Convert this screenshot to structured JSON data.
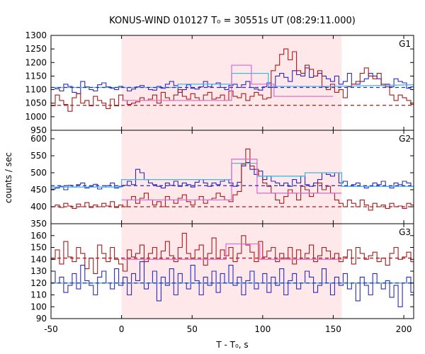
{
  "chart_data": {
    "type": "line",
    "title": "KONUS-WIND 010127 T₀ = 30551s UT (08:29:11.000)",
    "xlabel": "T - T₀, s",
    "ylabel": "counts / sec",
    "xlim": [
      -50,
      207
    ],
    "xticks": [
      -50,
      0,
      50,
      100,
      150,
      200
    ],
    "highlight_interval": [
      0,
      156
    ],
    "bin_width": 3,
    "panels": [
      {
        "name": "G1",
        "ylim": [
          950,
          1300
        ],
        "yticks": [
          950,
          1000,
          1050,
          1100,
          1150,
          1200,
          1250,
          1300
        ],
        "series": [
          {
            "color": "#2b2bbb",
            "x0": -50,
            "values": [
              1108,
              1103,
              1095,
              1120,
              1112,
              1090,
              1085,
              1130,
              1110,
              1100,
              1095,
              1118,
              1125,
              1110,
              1105,
              1100,
              1112,
              1108,
              1095,
              1102,
              1110,
              1115,
              1108,
              1100,
              1098,
              1112,
              1105,
              1120,
              1130,
              1115,
              1090,
              1100,
              1118,
              1105,
              1102,
              1110,
              1130,
              1110,
              1120,
              1125,
              1108,
              1100,
              1115,
              1120,
              1108,
              1118,
              1130,
              1108,
              1102,
              1098,
              1110,
              1125,
              1108,
              1150,
              1160,
              1145,
              1130,
              1170,
              1155,
              1150,
              1180,
              1145,
              1150,
              1160,
              1150,
              1140,
              1130,
              1150,
              1120,
              1130,
              1160,
              1120,
              1120,
              1130,
              1140,
              1160,
              1150,
              1140,
              1115,
              1120,
              1110,
              1140,
              1130,
              1125,
              1105,
              1110,
              1120,
              1110,
              1130,
              1115
            ]
          },
          {
            "color": "#aa1a1a",
            "x0": -50,
            "values": [
              1040,
              1080,
              1060,
              1045,
              1020,
              1070,
              1085,
              1050,
              1060,
              1040,
              1075,
              1060,
              1050,
              1030,
              1065,
              1040,
              1080,
              1060,
              1045,
              1050,
              1055,
              1070,
              1060,
              1065,
              1080,
              1050,
              1090,
              1070,
              1060,
              1080,
              1100,
              1075,
              1065,
              1085,
              1070,
              1060,
              1080,
              1090,
              1065,
              1070,
              1080,
              1060,
              1095,
              1075,
              1070,
              1085,
              1060,
              1075,
              1090,
              1080,
              1065,
              1070,
              1170,
              1190,
              1230,
              1250,
              1210,
              1240,
              1170,
              1160,
              1190,
              1175,
              1150,
              1170,
              1110,
              1100,
              1120,
              1090,
              1100,
              1070,
              1110,
              1120,
              1130,
              1160,
              1180,
              1150,
              1140,
              1160,
              1120,
              1110,
              1080,
              1060,
              1080,
              1070,
              1060,
              1045,
              1060,
              1070,
              1050,
              1040,
              1020,
              1030,
              1060,
              1040,
              1050,
              1030,
              1045,
              1020,
              1040,
              1060,
              1070,
              1050,
              1040,
              1020,
              1030,
              1060
            ]
          },
          {
            "color": "#44b8e0",
            "kind": "fit",
            "points": [
              [
                -50,
                1108
              ],
              [
                40,
                1108
              ],
              [
                40,
                1120
              ],
              [
                78,
                1120
              ],
              [
                78,
                1160
              ],
              [
                104,
                1160
              ],
              [
                104,
                1112
              ],
              [
                150,
                1112
              ],
              [
                150,
                1112
              ],
              [
                207,
                1118
              ]
            ]
          },
          {
            "color": "#e070d0",
            "kind": "fit",
            "points": [
              [
                0,
                1060
              ],
              [
                78,
                1060
              ],
              [
                78,
                1190
              ],
              [
                92,
                1190
              ],
              [
                92,
                1120
              ],
              [
                108,
                1120
              ],
              [
                108,
                1075
              ],
              [
                150,
                1075
              ]
            ]
          },
          {
            "color": "#aa1a1a",
            "kind": "background",
            "dashed": true,
            "value": 1042
          },
          {
            "color": "#2b2bbb",
            "kind": "background",
            "dashed": true,
            "value": 1108
          }
        ]
      },
      {
        "name": "G2",
        "ylim": [
          350,
          625
        ],
        "yticks": [
          350,
          400,
          450,
          500,
          550,
          600
        ],
        "series": [
          {
            "color": "#2b2bbb",
            "x0": -50,
            "values": [
              452,
              455,
              460,
              450,
              463,
              458,
              465,
              470,
              455,
              460,
              466,
              452,
              458,
              462,
              470,
              455,
              460,
              463,
              475,
              465,
              510,
              500,
              480,
              470,
              465,
              460,
              455,
              470,
              463,
              475,
              460,
              470,
              465,
              458,
              472,
              480,
              470,
              460,
              470,
              465,
              475,
              480,
              470,
              460,
              472,
              520,
              530,
              510,
              495,
              505,
              480,
              490,
              475,
              470,
              462,
              470,
              460,
              480,
              470,
              490,
              465,
              460,
              470,
              480,
              500,
              495,
              490,
              500,
              470,
              475,
              460,
              465,
              470,
              460,
              455,
              460,
              470,
              465,
              475,
              460,
              455,
              470,
              465,
              475,
              470,
              460
            ]
          },
          {
            "color": "#aa1a1a",
            "x0": -50,
            "values": [
              400,
              405,
              398,
              410,
              402,
              395,
              408,
              400,
              412,
              398,
              405,
              400,
              410,
              402,
              415,
              398,
              405,
              400,
              420,
              430,
              410,
              425,
              440,
              420,
              405,
              415,
              400,
              430,
              420,
              410,
              425,
              435,
              415,
              405,
              420,
              430,
              410,
              420,
              425,
              440,
              430,
              420,
              415,
              435,
              445,
              525,
              570,
              520,
              510,
              490,
              470,
              460,
              440,
              420,
              410,
              430,
              450,
              440,
              420,
              460,
              450,
              430,
              440,
              470,
              450,
              460,
              440,
              420,
              410,
              400,
              420,
              410,
              400,
              420,
              405,
              390,
              410,
              400,
              405,
              395,
              410,
              400,
              402,
              395,
              410,
              405
            ]
          },
          {
            "color": "#44b8e0",
            "kind": "fit",
            "points": [
              [
                -50,
                458
              ],
              [
                0,
                458
              ],
              [
                0,
                480
              ],
              [
                78,
                480
              ],
              [
                78,
                528
              ],
              [
                96,
                528
              ],
              [
                96,
                490
              ],
              [
                130,
                490
              ],
              [
                130,
                500
              ],
              [
                156,
                500
              ],
              [
                156,
                460
              ],
              [
                207,
                460
              ]
            ]
          },
          {
            "color": "#e070d0",
            "kind": "fit",
            "points": [
              [
                0,
                420
              ],
              [
                78,
                420
              ],
              [
                78,
                540
              ],
              [
                96,
                540
              ],
              [
                96,
                440
              ],
              [
                156,
                440
              ]
            ]
          },
          {
            "color": "#aa1a1a",
            "kind": "background",
            "dashed": true,
            "value": 400
          },
          {
            "color": "#2b2bbb",
            "kind": "background",
            "dashed": true,
            "value": 462
          }
        ]
      },
      {
        "name": "G3",
        "ylim": [
          90,
          170
        ],
        "yticks": [
          90,
          100,
          110,
          120,
          130,
          140,
          150,
          160
        ],
        "series": [
          {
            "color": "#aa1a1a",
            "x0": -50,
            "values": [
              140,
              148,
              136,
              155,
              142,
              138,
              150,
              145,
              132,
              141,
              128,
              152,
              145,
              138,
              150,
              140,
              136,
              130,
              148,
              142,
              145,
              152,
              138,
              145,
              150,
              140,
              147,
              155,
              143,
              138,
              150,
              162,
              145,
              140,
              148,
              152,
              135,
              145,
              158,
              140,
              148,
              143,
              150,
              138,
              145,
              160,
              152,
              146,
              138,
              155,
              142,
              147,
              150,
              138,
              145,
              141,
              150,
              136,
              148,
              140,
              145,
              152,
              138,
              143,
              150,
              147,
              140,
              145,
              138,
              142,
              148,
              136,
              150,
              145,
              140,
              143,
              146,
              138,
              141,
              135,
              145,
              150,
              140,
              142,
              146,
              138,
              150,
              144
            ]
          },
          {
            "color": "#2b2bbb",
            "x0": -50,
            "values": [
              130,
              120,
              125,
              112,
              118,
              128,
              115,
              135,
              122,
              118,
              110,
              125,
              130,
              120,
              115,
              132,
              118,
              125,
              110,
              128,
              122,
              138,
              115,
              120,
              130,
              105,
              125,
              118,
              132,
              110,
              128,
              120,
              115,
              135,
              122,
              110,
              125,
              118,
              130,
              112,
              128,
              120,
              135,
              118,
              125,
              110,
              122,
              130,
              115,
              120,
              128,
              112,
              125,
              118,
              132,
              110,
              122,
              128,
              115,
              120,
              130,
              125,
              112,
              118,
              132,
              120,
              110,
              125,
              118,
              128,
              115,
              120,
              105,
              125,
              118,
              110,
              128,
              120,
              115,
              122,
              108,
              118,
              100,
              120,
              125,
              112
            ]
          },
          {
            "color": "#44b8e0",
            "kind": "fit",
            "points": [
              [
                -50,
                120
              ],
              [
                207,
                120
              ]
            ]
          },
          {
            "color": "#e070d0",
            "kind": "fit",
            "points": [
              [
                0,
                140
              ],
              [
                74,
                140
              ],
              [
                74,
                153
              ],
              [
                98,
                153
              ],
              [
                98,
                140
              ],
              [
                156,
                140
              ]
            ]
          },
          {
            "color": "#aa1a1a",
            "kind": "background",
            "dashed": true,
            "value": 141
          },
          {
            "color": "#2b2bbb",
            "kind": "background",
            "dashed": true,
            "value": 120
          }
        ]
      }
    ]
  }
}
